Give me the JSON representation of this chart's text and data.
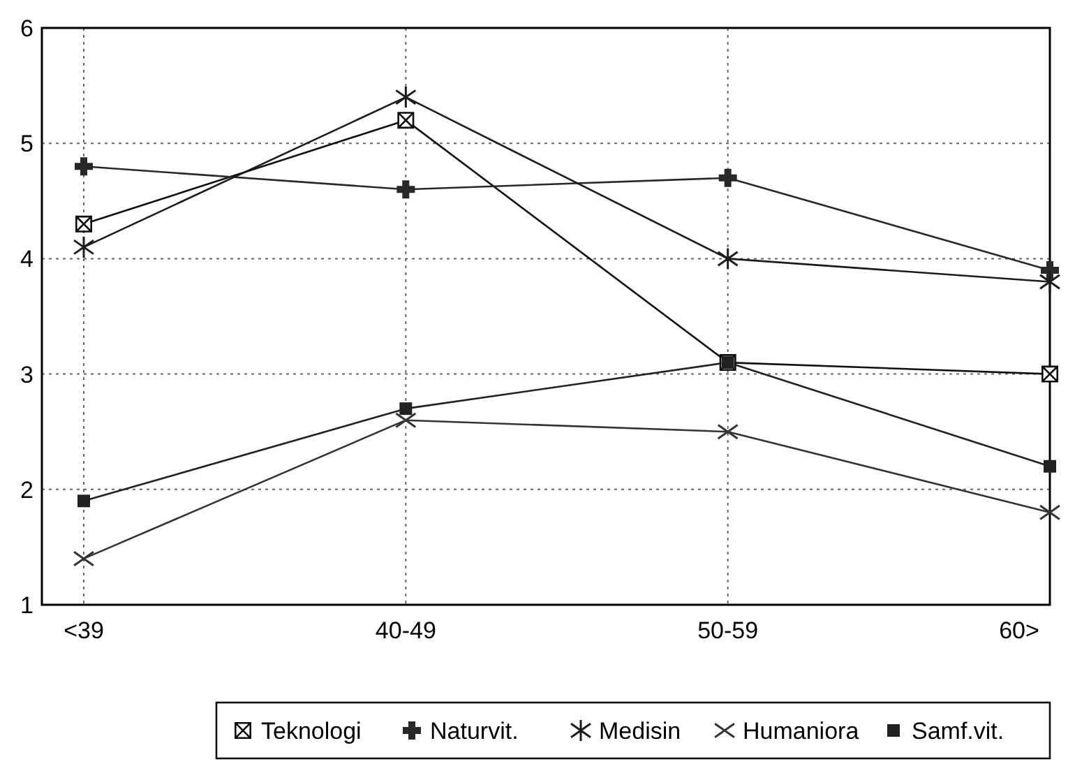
{
  "chart_data": {
    "type": "line",
    "categories": [
      "<39",
      "40-49",
      "50-59",
      "60>"
    ],
    "ylim": [
      1,
      6
    ],
    "yticks": [
      1,
      2,
      3,
      4,
      5,
      6
    ],
    "grid": true,
    "legend": "bottom",
    "line_style": "solid",
    "series": [
      {
        "name": "Teknologi",
        "color": "#101010",
        "marker": "square",
        "values": [
          4.3,
          5.2,
          3.1,
          3.0
        ]
      },
      {
        "name": "Naturvit.",
        "color": "#282828",
        "marker": "cross",
        "values": [
          4.8,
          4.6,
          4.7,
          3.9
        ]
      },
      {
        "name": "Medisin",
        "color": "#1c1c1c",
        "marker": "cross",
        "values": [
          4.1,
          5.4,
          4.0,
          3.8
        ]
      },
      {
        "name": "Humaniora",
        "color": "#343434",
        "marker": "cross",
        "values": [
          1.4,
          2.6,
          2.5,
          1.8
        ]
      },
      {
        "name": "Samf.vit.",
        "color": "#222222",
        "marker": "square",
        "values": [
          1.9,
          2.7,
          3.1,
          2.2
        ]
      }
    ]
  }
}
